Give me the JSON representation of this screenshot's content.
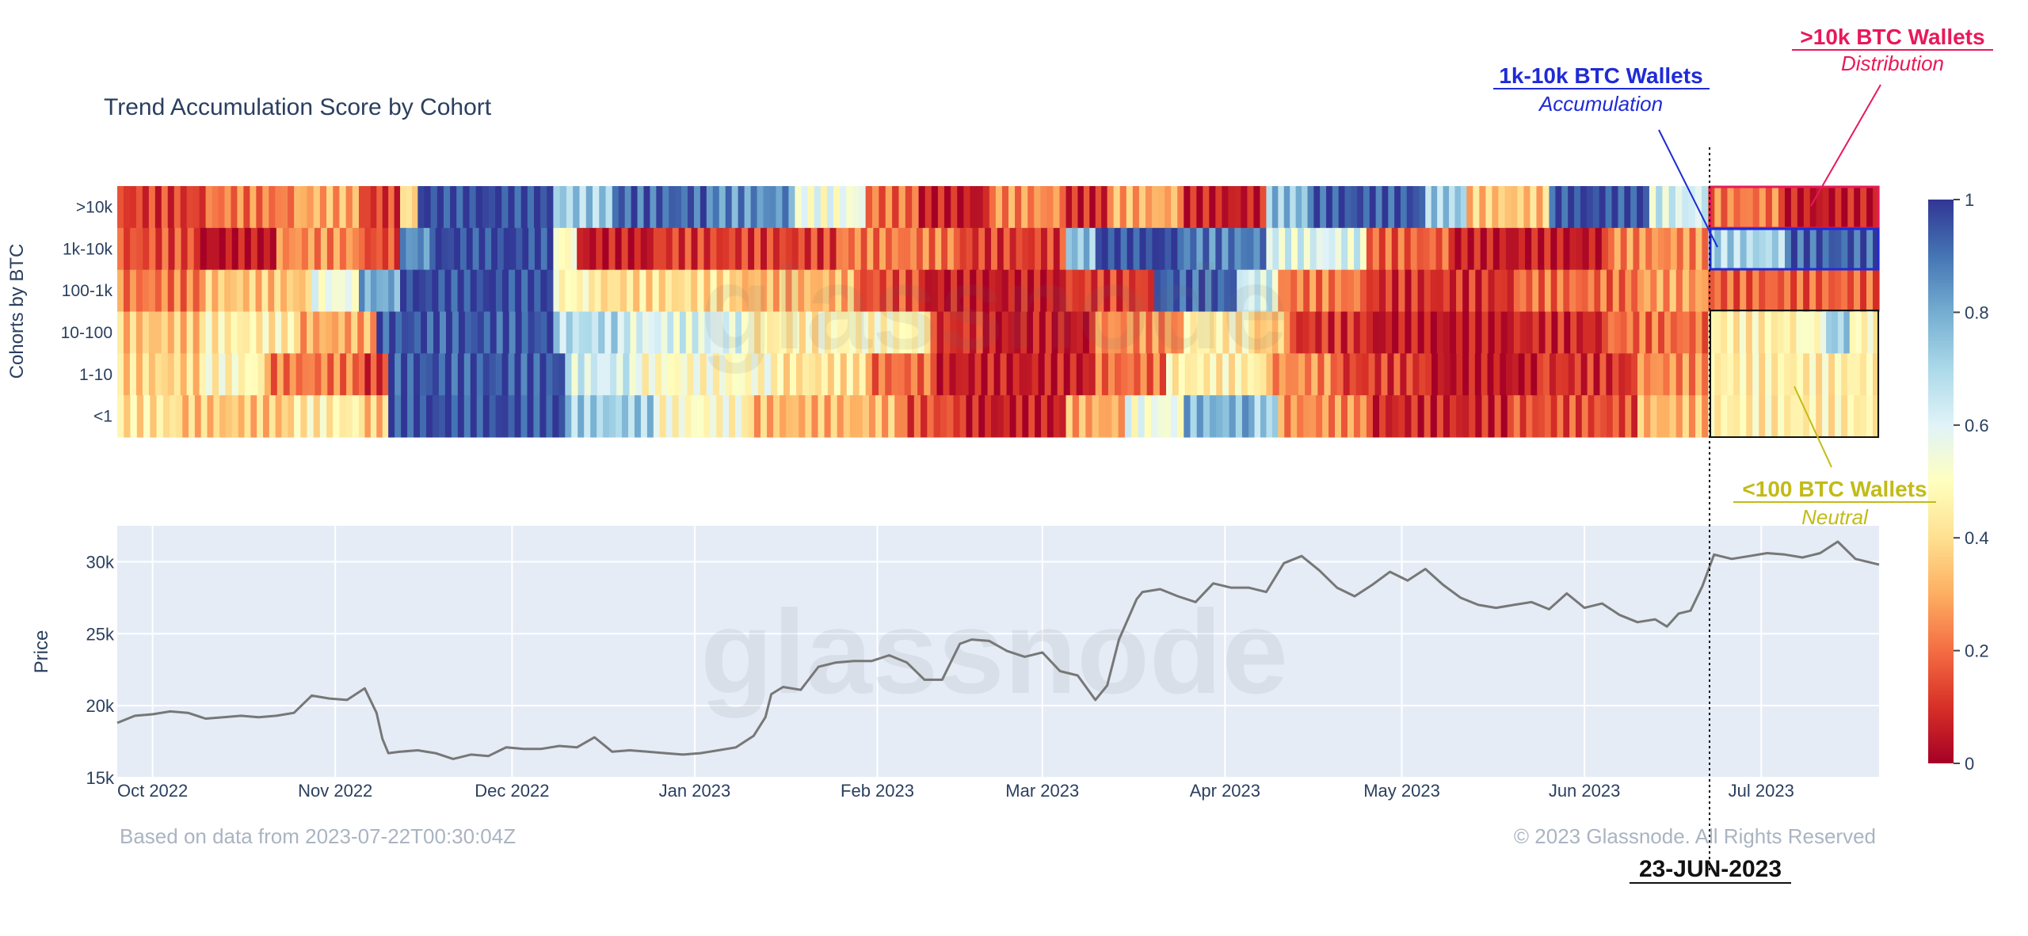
{
  "chart_data": [
    {
      "type": "heatmap",
      "title": "Trend Accumulation Score by Cohort",
      "ylabel": "Cohorts by BTC",
      "rows": [
        ">10k",
        "1k-10k",
        "100-1k",
        "10-100",
        "1-10",
        "<1"
      ],
      "x_range": [
        "2022-09-25",
        "2023-07-21"
      ],
      "zlim": [
        0,
        1
      ],
      "colorbar_ticks": [
        "0",
        "0.2",
        "0.4",
        "0.6",
        "0.8",
        "1"
      ],
      "colorscale": [
        "#a50026",
        "#d73027",
        "#f46d43",
        "#fdae61",
        "#fee090",
        "#ffffbf",
        "#e0f3f8",
        "#abd9e9",
        "#74add1",
        "#4575b4",
        "#313695"
      ],
      "segments": {
        ">10k": [
          [
            "2022-09-25",
            0.12
          ],
          [
            "2022-10-10",
            0.22
          ],
          [
            "2022-10-25",
            0.3
          ],
          [
            "2022-11-05",
            0.12
          ],
          [
            "2022-11-12",
            0.4
          ],
          [
            "2022-11-15",
            0.98
          ],
          [
            "2022-12-08",
            0.72
          ],
          [
            "2022-12-18",
            0.92
          ],
          [
            "2023-01-03",
            0.85
          ],
          [
            "2023-01-18",
            0.55
          ],
          [
            "2023-01-30",
            0.2
          ],
          [
            "2023-02-08",
            0.05
          ],
          [
            "2023-02-20",
            0.25
          ],
          [
            "2023-03-05",
            0.08
          ],
          [
            "2023-03-12",
            0.3
          ],
          [
            "2023-03-25",
            0.06
          ],
          [
            "2023-04-08",
            0.75
          ],
          [
            "2023-04-15",
            0.95
          ],
          [
            "2023-05-05",
            0.72
          ],
          [
            "2023-05-12",
            0.35
          ],
          [
            "2023-05-26",
            0.97
          ],
          [
            "2023-06-12",
            0.62
          ],
          [
            "2023-06-22",
            0.22
          ],
          [
            "2023-07-05",
            0.05
          ]
        ],
        "1k-10k": [
          [
            "2022-09-25",
            0.15
          ],
          [
            "2022-10-08",
            0.03
          ],
          [
            "2022-10-22",
            0.25
          ],
          [
            "2022-11-05",
            0.15
          ],
          [
            "2022-11-12",
            0.85
          ],
          [
            "2022-11-18",
            0.98
          ],
          [
            "2022-12-08",
            0.5
          ],
          [
            "2022-12-12",
            0.05
          ],
          [
            "2022-12-25",
            0.12
          ],
          [
            "2023-01-25",
            0.22
          ],
          [
            "2023-02-15",
            0.12
          ],
          [
            "2023-03-05",
            0.75
          ],
          [
            "2023-03-10",
            0.98
          ],
          [
            "2023-03-25",
            0.88
          ],
          [
            "2023-04-08",
            0.6
          ],
          [
            "2023-04-25",
            0.18
          ],
          [
            "2023-05-10",
            0.05
          ],
          [
            "2023-06-05",
            0.25
          ],
          [
            "2023-06-22",
            0.7
          ],
          [
            "2023-07-05",
            0.93
          ]
        ],
        "100-1k": [
          [
            "2022-09-25",
            0.22
          ],
          [
            "2022-10-10",
            0.35
          ],
          [
            "2022-10-28",
            0.55
          ],
          [
            "2022-11-05",
            0.8
          ],
          [
            "2022-11-12",
            0.98
          ],
          [
            "2022-12-08",
            0.48
          ],
          [
            "2022-12-15",
            0.4
          ],
          [
            "2023-01-08",
            0.32
          ],
          [
            "2023-01-28",
            0.15
          ],
          [
            "2023-02-08",
            0.05
          ],
          [
            "2023-03-05",
            0.12
          ],
          [
            "2023-03-20",
            0.93
          ],
          [
            "2023-04-03",
            0.62
          ],
          [
            "2023-04-10",
            0.22
          ],
          [
            "2023-04-25",
            0.1
          ],
          [
            "2023-05-20",
            0.2
          ],
          [
            "2023-06-10",
            0.28
          ],
          [
            "2023-06-22",
            0.18
          ]
        ],
        "10-100": [
          [
            "2022-09-25",
            0.35
          ],
          [
            "2022-10-10",
            0.45
          ],
          [
            "2022-10-25",
            0.3
          ],
          [
            "2022-11-08",
            0.95
          ],
          [
            "2022-12-08",
            0.68
          ],
          [
            "2022-12-20",
            0.6
          ],
          [
            "2023-01-10",
            0.45
          ],
          [
            "2023-01-22",
            0.48
          ],
          [
            "2023-02-10",
            0.1
          ],
          [
            "2023-02-20",
            0.05
          ],
          [
            "2023-03-10",
            0.25
          ],
          [
            "2023-03-25",
            0.45
          ],
          [
            "2023-04-05",
            0.35
          ],
          [
            "2023-04-12",
            0.1
          ],
          [
            "2023-04-25",
            0.04
          ],
          [
            "2023-05-20",
            0.08
          ],
          [
            "2023-06-05",
            0.2
          ],
          [
            "2023-06-22",
            0.45
          ],
          [
            "2023-07-08",
            0.5
          ],
          [
            "2023-07-12",
            0.72
          ],
          [
            "2023-07-16",
            0.48
          ]
        ],
        "1-10": [
          [
            "2022-09-25",
            0.38
          ],
          [
            "2022-10-10",
            0.48
          ],
          [
            "2022-10-20",
            0.22
          ],
          [
            "2022-11-05",
            0.12
          ],
          [
            "2022-11-10",
            0.95
          ],
          [
            "2022-12-10",
            0.62
          ],
          [
            "2022-12-22",
            0.5
          ],
          [
            "2023-01-15",
            0.42
          ],
          [
            "2023-01-30",
            0.2
          ],
          [
            "2023-02-10",
            0.06
          ],
          [
            "2023-03-10",
            0.2
          ],
          [
            "2023-03-22",
            0.45
          ],
          [
            "2023-04-08",
            0.25
          ],
          [
            "2023-04-20",
            0.12
          ],
          [
            "2023-05-05",
            0.04
          ],
          [
            "2023-05-25",
            0.1
          ],
          [
            "2023-06-10",
            0.25
          ],
          [
            "2023-06-22",
            0.45
          ]
        ],
        "<1": [
          [
            "2022-09-25",
            0.42
          ],
          [
            "2022-10-05",
            0.35
          ],
          [
            "2022-10-25",
            0.45
          ],
          [
            "2022-11-05",
            0.35
          ],
          [
            "2022-11-10",
            0.97
          ],
          [
            "2022-12-10",
            0.72
          ],
          [
            "2022-12-25",
            0.5
          ],
          [
            "2023-01-10",
            0.32
          ],
          [
            "2023-02-05",
            0.15
          ],
          [
            "2023-02-15",
            0.06
          ],
          [
            "2023-03-05",
            0.3
          ],
          [
            "2023-03-15",
            0.55
          ],
          [
            "2023-03-25",
            0.78
          ],
          [
            "2023-04-05",
            0.72
          ],
          [
            "2023-04-10",
            0.25
          ],
          [
            "2023-04-25",
            0.08
          ],
          [
            "2023-05-20",
            0.15
          ],
          [
            "2023-06-10",
            0.32
          ],
          [
            "2023-06-22",
            0.45
          ]
        ]
      }
    },
    {
      "type": "line",
      "ylabel": "Price",
      "ylim": [
        15000,
        32500
      ],
      "y_ticks": [
        15000,
        20000,
        25000,
        30000
      ],
      "y_tick_labels": [
        "15k",
        "20k",
        "25k",
        "30k"
      ],
      "x_range": [
        "2022-09-25",
        "2023-07-21"
      ],
      "x_ticks": [
        "2022-10-01",
        "2022-11-01",
        "2022-12-01",
        "2023-01-01",
        "2023-02-01",
        "2023-03-01",
        "2023-04-01",
        "2023-05-01",
        "2023-06-01",
        "2023-07-01"
      ],
      "x_tick_labels": [
        "Oct 2022",
        "Nov 2022",
        "Dec 2022",
        "Jan 2023",
        "Feb 2023",
        "Mar 2023",
        "Apr 2023",
        "May 2023",
        "Jun 2023",
        "Jul 2023"
      ],
      "grid": true,
      "line_color": "#777777",
      "background": "#e5ecf6",
      "series": [
        {
          "x": [
            "2022-09-25",
            "2022-09-28",
            "2022-10-01",
            "2022-10-04",
            "2022-10-07",
            "2022-10-10",
            "2022-10-13",
            "2022-10-16",
            "2022-10-19",
            "2022-10-22",
            "2022-10-25",
            "2022-10-28",
            "2022-10-31",
            "2022-11-03",
            "2022-11-06",
            "2022-11-08",
            "2022-11-09",
            "2022-11-10",
            "2022-11-12",
            "2022-11-15",
            "2022-11-18",
            "2022-11-21",
            "2022-11-24",
            "2022-11-27",
            "2022-11-30",
            "2022-12-03",
            "2022-12-06",
            "2022-12-09",
            "2022-12-12",
            "2022-12-15",
            "2022-12-18",
            "2022-12-21",
            "2022-12-24",
            "2022-12-27",
            "2022-12-30",
            "2023-01-02",
            "2023-01-05",
            "2023-01-08",
            "2023-01-11",
            "2023-01-13",
            "2023-01-14",
            "2023-01-16",
            "2023-01-19",
            "2023-01-22",
            "2023-01-25",
            "2023-01-28",
            "2023-01-31",
            "2023-02-03",
            "2023-02-06",
            "2023-02-09",
            "2023-02-12",
            "2023-02-15",
            "2023-02-17",
            "2023-02-20",
            "2023-02-23",
            "2023-02-26",
            "2023-03-01",
            "2023-03-04",
            "2023-03-07",
            "2023-03-10",
            "2023-03-12",
            "2023-03-14",
            "2023-03-17",
            "2023-03-18",
            "2023-03-21",
            "2023-03-24",
            "2023-03-27",
            "2023-03-30",
            "2023-04-02",
            "2023-04-05",
            "2023-04-08",
            "2023-04-11",
            "2023-04-14",
            "2023-04-17",
            "2023-04-20",
            "2023-04-23",
            "2023-04-26",
            "2023-04-29",
            "2023-05-02",
            "2023-05-05",
            "2023-05-08",
            "2023-05-11",
            "2023-05-14",
            "2023-05-17",
            "2023-05-20",
            "2023-05-23",
            "2023-05-26",
            "2023-05-29",
            "2023-06-01",
            "2023-06-04",
            "2023-06-07",
            "2023-06-10",
            "2023-06-13",
            "2023-06-15",
            "2023-06-17",
            "2023-06-19",
            "2023-06-21",
            "2023-06-23",
            "2023-06-26",
            "2023-06-29",
            "2023-07-02",
            "2023-07-05",
            "2023-07-08",
            "2023-07-11",
            "2023-07-14",
            "2023-07-17",
            "2023-07-20",
            "2023-07-21"
          ],
          "y": [
            18800,
            19300,
            19400,
            19600,
            19500,
            19100,
            19200,
            19300,
            19200,
            19300,
            19500,
            20700,
            20500,
            20400,
            21200,
            19500,
            17700,
            16700,
            16800,
            16900,
            16700,
            16300,
            16600,
            16500,
            17100,
            17000,
            17000,
            17200,
            17100,
            17800,
            16800,
            16900,
            16800,
            16700,
            16600,
            16700,
            16900,
            17100,
            17900,
            19200,
            20800,
            21300,
            21100,
            22700,
            23000,
            23100,
            23100,
            23500,
            23000,
            21800,
            21800,
            24300,
            24600,
            24500,
            23800,
            23400,
            23700,
            22400,
            22100,
            20400,
            21400,
            24600,
            27400,
            27900,
            28100,
            27600,
            27200,
            28500,
            28200,
            28200,
            27900,
            29900,
            30400,
            29400,
            28200,
            27600,
            28400,
            29300,
            28700,
            29500,
            28400,
            27500,
            27000,
            26800,
            27000,
            27200,
            26700,
            27800,
            26800,
            27100,
            26300,
            25800,
            26000,
            25500,
            26400,
            26600,
            28300,
            30500,
            30200,
            30400,
            30600,
            30500,
            30300,
            30600,
            31400,
            30200,
            29900,
            29800
          ]
        }
      ]
    }
  ],
  "annotations": {
    "whale": {
      "title": ">10k BTC Wallets",
      "subtitle": "Distribution",
      "color": "#e8195a"
    },
    "shark": {
      "title": "1k-10k BTC Wallets",
      "subtitle": "Accumulation",
      "color": "#1f2bd6"
    },
    "retail": {
      "title": "<100 BTC Wallets",
      "subtitle": "Neutral",
      "color": "#c2bb18"
    },
    "date_marker": {
      "label": "23-JUN-2023",
      "date": "2023-06-23"
    }
  },
  "footer": {
    "left": "Based on data from 2023-07-22T00:30:04Z",
    "right": "© 2023 Glassnode. All Rights Reserved"
  },
  "watermark": "glassnode"
}
